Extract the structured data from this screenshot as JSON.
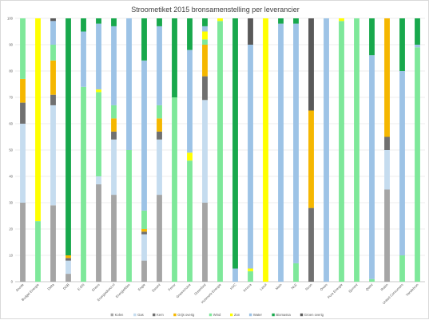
{
  "chart_data": {
    "type": "bar",
    "stacked": true,
    "title": "Stroometiket 2015 bronsamenstelling per leverancier",
    "ylim": [
      0,
      100
    ],
    "yticks": [
      0,
      10,
      20,
      30,
      40,
      50,
      60,
      70,
      80,
      90,
      100
    ],
    "grid": true,
    "legend_position": "bottom",
    "categories": [
      "Anode",
      "Budget Energie",
      "Delta",
      "DGB",
      "E.ON",
      "Eneco",
      "Energiedirect.nl",
      "Energiefides",
      "Engie",
      "Essent",
      "Fenor",
      "Greenchoice",
      "Greenfoot",
      "Huismerk Energie",
      "HVC",
      "Innova",
      "Lesol",
      "Main",
      "NLE",
      "Nuon",
      "Oxxio",
      "Pure Energie",
      "Qurrent",
      "Qwint",
      "Robin",
      "United Consumers",
      "Vandebron"
    ],
    "series": [
      {
        "name": "Kolen",
        "color": "#a5a5a5",
        "values": [
          30,
          0,
          29,
          3,
          0,
          37,
          33,
          0,
          8,
          33,
          0,
          0,
          30,
          0,
          0,
          0,
          0,
          0,
          0,
          0,
          0,
          0,
          0,
          0,
          35,
          0,
          0
        ]
      },
      {
        "name": "Gas",
        "color": "#c5dcef",
        "values": [
          30,
          0,
          38,
          5,
          0,
          3,
          21,
          0,
          10,
          21,
          0,
          0,
          39,
          0,
          0,
          0,
          0,
          0,
          0,
          0,
          0,
          0,
          0,
          0,
          15,
          0,
          0
        ]
      },
      {
        "name": "Kern",
        "color": "#707070",
        "values": [
          8,
          0,
          4,
          1,
          0,
          0,
          3,
          0,
          1,
          3,
          0,
          0,
          9,
          0,
          0,
          0,
          0,
          0,
          0,
          28,
          0,
          0,
          0,
          0,
          5,
          0,
          0
        ]
      },
      {
        "name": "Grijs overig",
        "color": "#f5b700",
        "values": [
          9,
          0,
          13,
          1,
          0,
          0,
          5,
          0,
          1,
          5,
          0,
          0,
          12,
          0,
          0,
          0,
          0,
          0,
          0,
          37,
          0,
          0,
          0,
          0,
          45,
          0,
          0
        ]
      },
      {
        "name": "Wind",
        "color": "#7ee89a",
        "values": [
          23,
          23,
          6,
          0,
          74,
          32,
          5,
          50,
          7,
          5,
          70,
          46,
          2,
          99,
          0,
          4,
          0,
          0,
          7,
          0,
          0,
          99,
          100,
          1,
          0,
          10,
          89
        ]
      },
      {
        "name": "Zon",
        "color": "#ffff00",
        "values": [
          0,
          77,
          0,
          0,
          0,
          1,
          0,
          0,
          0,
          0,
          0,
          3,
          3,
          1,
          0,
          1,
          100,
          0,
          0,
          0,
          0,
          1,
          0,
          0,
          0,
          0,
          0
        ]
      },
      {
        "name": "Water",
        "color": "#9dc3e6",
        "values": [
          0,
          0,
          9,
          0,
          21,
          25,
          30,
          50,
          57,
          30,
          0,
          39,
          2,
          0,
          5,
          85,
          0,
          98,
          91,
          0,
          100,
          0,
          0,
          85,
          0,
          70,
          1
        ]
      },
      {
        "name": "Biomassa",
        "color": "#18a84c",
        "values": [
          0,
          0,
          0,
          90,
          5,
          2,
          3,
          0,
          16,
          3,
          30,
          12,
          3,
          0,
          95,
          0,
          0,
          2,
          2,
          0,
          0,
          0,
          0,
          14,
          0,
          20,
          10
        ]
      },
      {
        "name": "Groen overig",
        "color": "#595959",
        "values": [
          0,
          0,
          1,
          0,
          0,
          0,
          0,
          0,
          0,
          0,
          0,
          0,
          0,
          0,
          0,
          10,
          0,
          0,
          0,
          35,
          0,
          0,
          0,
          0,
          0,
          0,
          0
        ]
      }
    ]
  }
}
